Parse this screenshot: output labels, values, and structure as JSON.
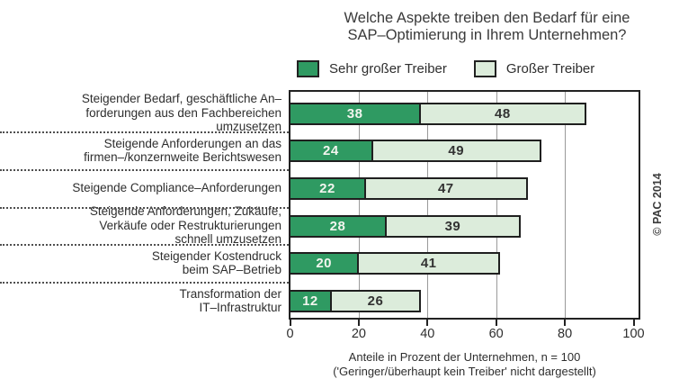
{
  "title": {
    "lines": [
      "Welche Aspekte treiben den Bedarf für eine",
      "SAP–Optimierung in Ihrem Unternehmen?"
    ]
  },
  "copyright": "© PAC 2014",
  "colors": {
    "sehr_grosser_treiber": "#2F9A62",
    "grosser_treiber": "#DCECDB",
    "bar_border": "#1F1F1F",
    "gridline": "#9A9A9A"
  },
  "chart_data": {
    "type": "bar",
    "orientation": "horizontal",
    "stacked": true,
    "title": "Welche Aspekte treiben den Bedarf für eine SAP–Optimierung in Ihrem Unternehmen?",
    "categories": [
      "Steigender Bedarf, geschäftliche Anforderungen aus den Fachbereichen umzusetzen",
      "Steigende Anforderungen an das firmen–/konzernweite Berichtswesen",
      "Steigende Compliance–Anforderungen",
      "Steigende Anforderungen, Zukäufe, Verkäufe oder Restrukturierungen schnell umzusetzen",
      "Steigender Kostendruck beim SAP–Betrieb",
      "Transformation der IT–Infrastruktur"
    ],
    "categories_lines": [
      [
        "Steigender Bedarf, geschäftliche An–",
        "forderungen aus den Fachbereichen",
        "umzusetzen"
      ],
      [
        "Steigende Anforderungen an das",
        "firmen–/konzernweite Berichtswesen"
      ],
      [
        "Steigende Compliance–Anforderungen"
      ],
      [
        "Steigende Anforderungen, Zukäufe,",
        "Verkäufe oder Restrukturierungen",
        "schnell umzusetzen"
      ],
      [
        "Steigender Kostendruck",
        "beim SAP–Betrieb"
      ],
      [
        "Transformation der",
        "IT–Infrastruktur"
      ]
    ],
    "series": [
      {
        "name": "Sehr großer Treiber",
        "color": "#2F9A62",
        "text_color": "#F2F5EE",
        "values": [
          38,
          24,
          22,
          28,
          20,
          12
        ]
      },
      {
        "name": "Großer Treiber",
        "color": "#DCECDB",
        "text_color": "#333333",
        "values": [
          48,
          49,
          47,
          39,
          41,
          26
        ]
      }
    ],
    "xlim": [
      0,
      100
    ],
    "xticks": [
      0,
      20,
      40,
      60,
      80,
      100
    ],
    "grid": true,
    "legend_position": "top",
    "xlabel": "Anteile in Prozent der Unternehmen, n = 100",
    "footnote": "('Geringer/überhaupt kein Treiber' nicht dargestellt)"
  }
}
